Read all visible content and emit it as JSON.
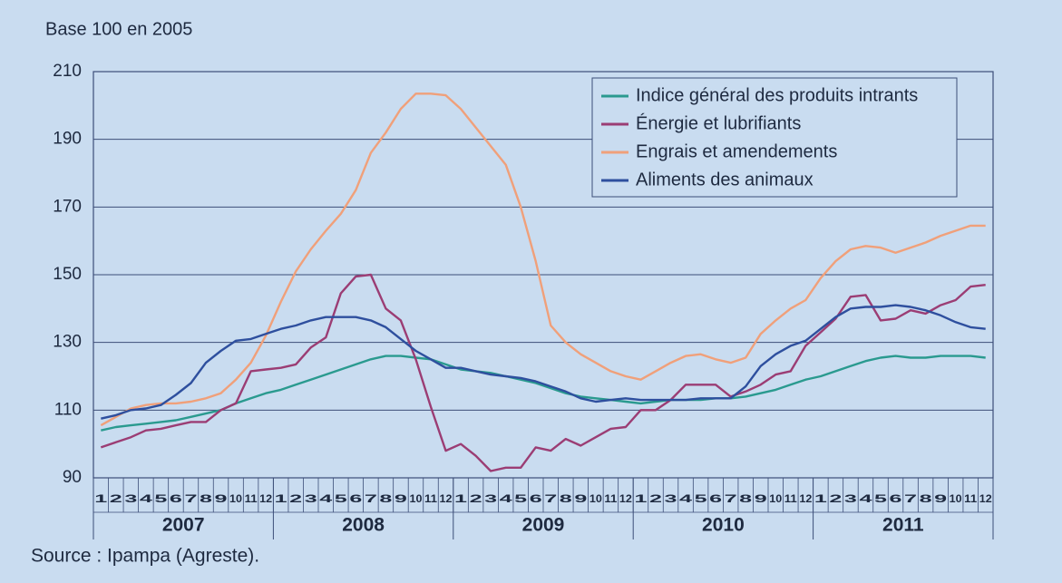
{
  "chart_data": {
    "type": "line",
    "y_label": "Base 100 en 2005",
    "source": "Source : Ipampa (Agreste).",
    "categories": [
      "1",
      "2",
      "3",
      "4",
      "5",
      "6",
      "7",
      "8",
      "9",
      "10",
      "11",
      "12",
      "1",
      "2",
      "3",
      "4",
      "5",
      "6",
      "7",
      "8",
      "9",
      "10",
      "11",
      "12",
      "1",
      "2",
      "3",
      "4",
      "5",
      "6",
      "7",
      "8",
      "9",
      "10",
      "11",
      "12",
      "1",
      "2",
      "3",
      "4",
      "5",
      "6",
      "7",
      "8",
      "9",
      "10",
      "11",
      "12",
      "1",
      "2",
      "3",
      "4",
      "5",
      "6",
      "7",
      "8",
      "9",
      "10",
      "11",
      "12"
    ],
    "x_groups": [
      "2007",
      "2008",
      "2009",
      "2010",
      "2011"
    ],
    "ylim": [
      90,
      210
    ],
    "yticks": [
      90,
      110,
      130,
      150,
      170,
      190,
      210
    ],
    "grid": true,
    "legend": "upper right",
    "series": [
      {
        "name": "Indice général des produits intrants",
        "color": "#2a9a8f",
        "values": [
          104,
          105,
          105.5,
          106,
          106.5,
          107,
          108,
          109,
          110,
          112,
          113.5,
          115,
          116,
          117.5,
          119,
          120.5,
          122,
          123.5,
          125,
          126,
          126,
          125.5,
          125,
          123.5,
          122,
          121.5,
          121,
          120,
          119,
          118,
          116.5,
          115,
          114,
          113.5,
          113,
          112.5,
          112,
          112.5,
          113,
          113,
          113,
          113.5,
          113.5,
          114,
          115,
          116,
          117.5,
          119,
          120,
          121.5,
          123,
          124.5,
          125.5,
          126,
          125.5,
          125.5,
          126,
          126,
          126,
          125.5
        ]
      },
      {
        "name": "Énergie et lubrifiants",
        "color": "#9b3d74",
        "values": [
          99,
          100.5,
          102,
          104,
          104.5,
          105.5,
          106.5,
          106.5,
          110,
          112,
          121.5,
          122,
          122.5,
          123.5,
          128.5,
          131.5,
          144.5,
          149.5,
          150,
          140,
          136.5,
          125,
          111,
          98,
          100,
          96.5,
          92,
          93,
          93,
          99,
          98,
          101.5,
          99.5,
          102,
          104.5,
          105,
          110,
          110,
          113,
          117.5,
          117.5,
          117.5,
          114,
          115.5,
          117.5,
          120.5,
          121.5,
          129,
          133,
          137,
          143.5,
          144,
          136.5,
          137,
          139.5,
          138.5,
          141,
          142.5,
          146.5,
          147
        ]
      },
      {
        "name": "Engrais et amendements",
        "color": "#f0a07a",
        "values": [
          105.5,
          108,
          110.5,
          111.5,
          112,
          112,
          112.5,
          113.5,
          115,
          119,
          124,
          132,
          142,
          151,
          157.5,
          163,
          168,
          175,
          186,
          192,
          199,
          203.5,
          203.5,
          203,
          199,
          193.5,
          188,
          182.5,
          170,
          154,
          135,
          130,
          126.5,
          124,
          121.5,
          120,
          119,
          121.5,
          124,
          126,
          126.5,
          125,
          124,
          125.5,
          132.5,
          136.5,
          140,
          142.5,
          149,
          154,
          157.5,
          158.5,
          158,
          156.5,
          158,
          159.5,
          161.5,
          163,
          164.5,
          164.5
        ]
      },
      {
        "name": "Aliments des animaux",
        "color": "#2e4f9e",
        "values": [
          107.5,
          108.5,
          110,
          110.5,
          111.5,
          114.5,
          118,
          124,
          127.5,
          130.5,
          131,
          132.5,
          134,
          135,
          136.5,
          137.5,
          137.5,
          137.5,
          136.5,
          134.5,
          131,
          127.5,
          125,
          122.5,
          122.5,
          121.5,
          120.5,
          120,
          119.5,
          118.5,
          117,
          115.5,
          113.5,
          112.5,
          113,
          113.5,
          113,
          113,
          113,
          113,
          113.5,
          113.5,
          113.5,
          117,
          123,
          126.5,
          129,
          130.5,
          134,
          137.5,
          140,
          140.5,
          140.5,
          141,
          140.5,
          139.5,
          138,
          136,
          134.5,
          134
        ]
      }
    ]
  }
}
